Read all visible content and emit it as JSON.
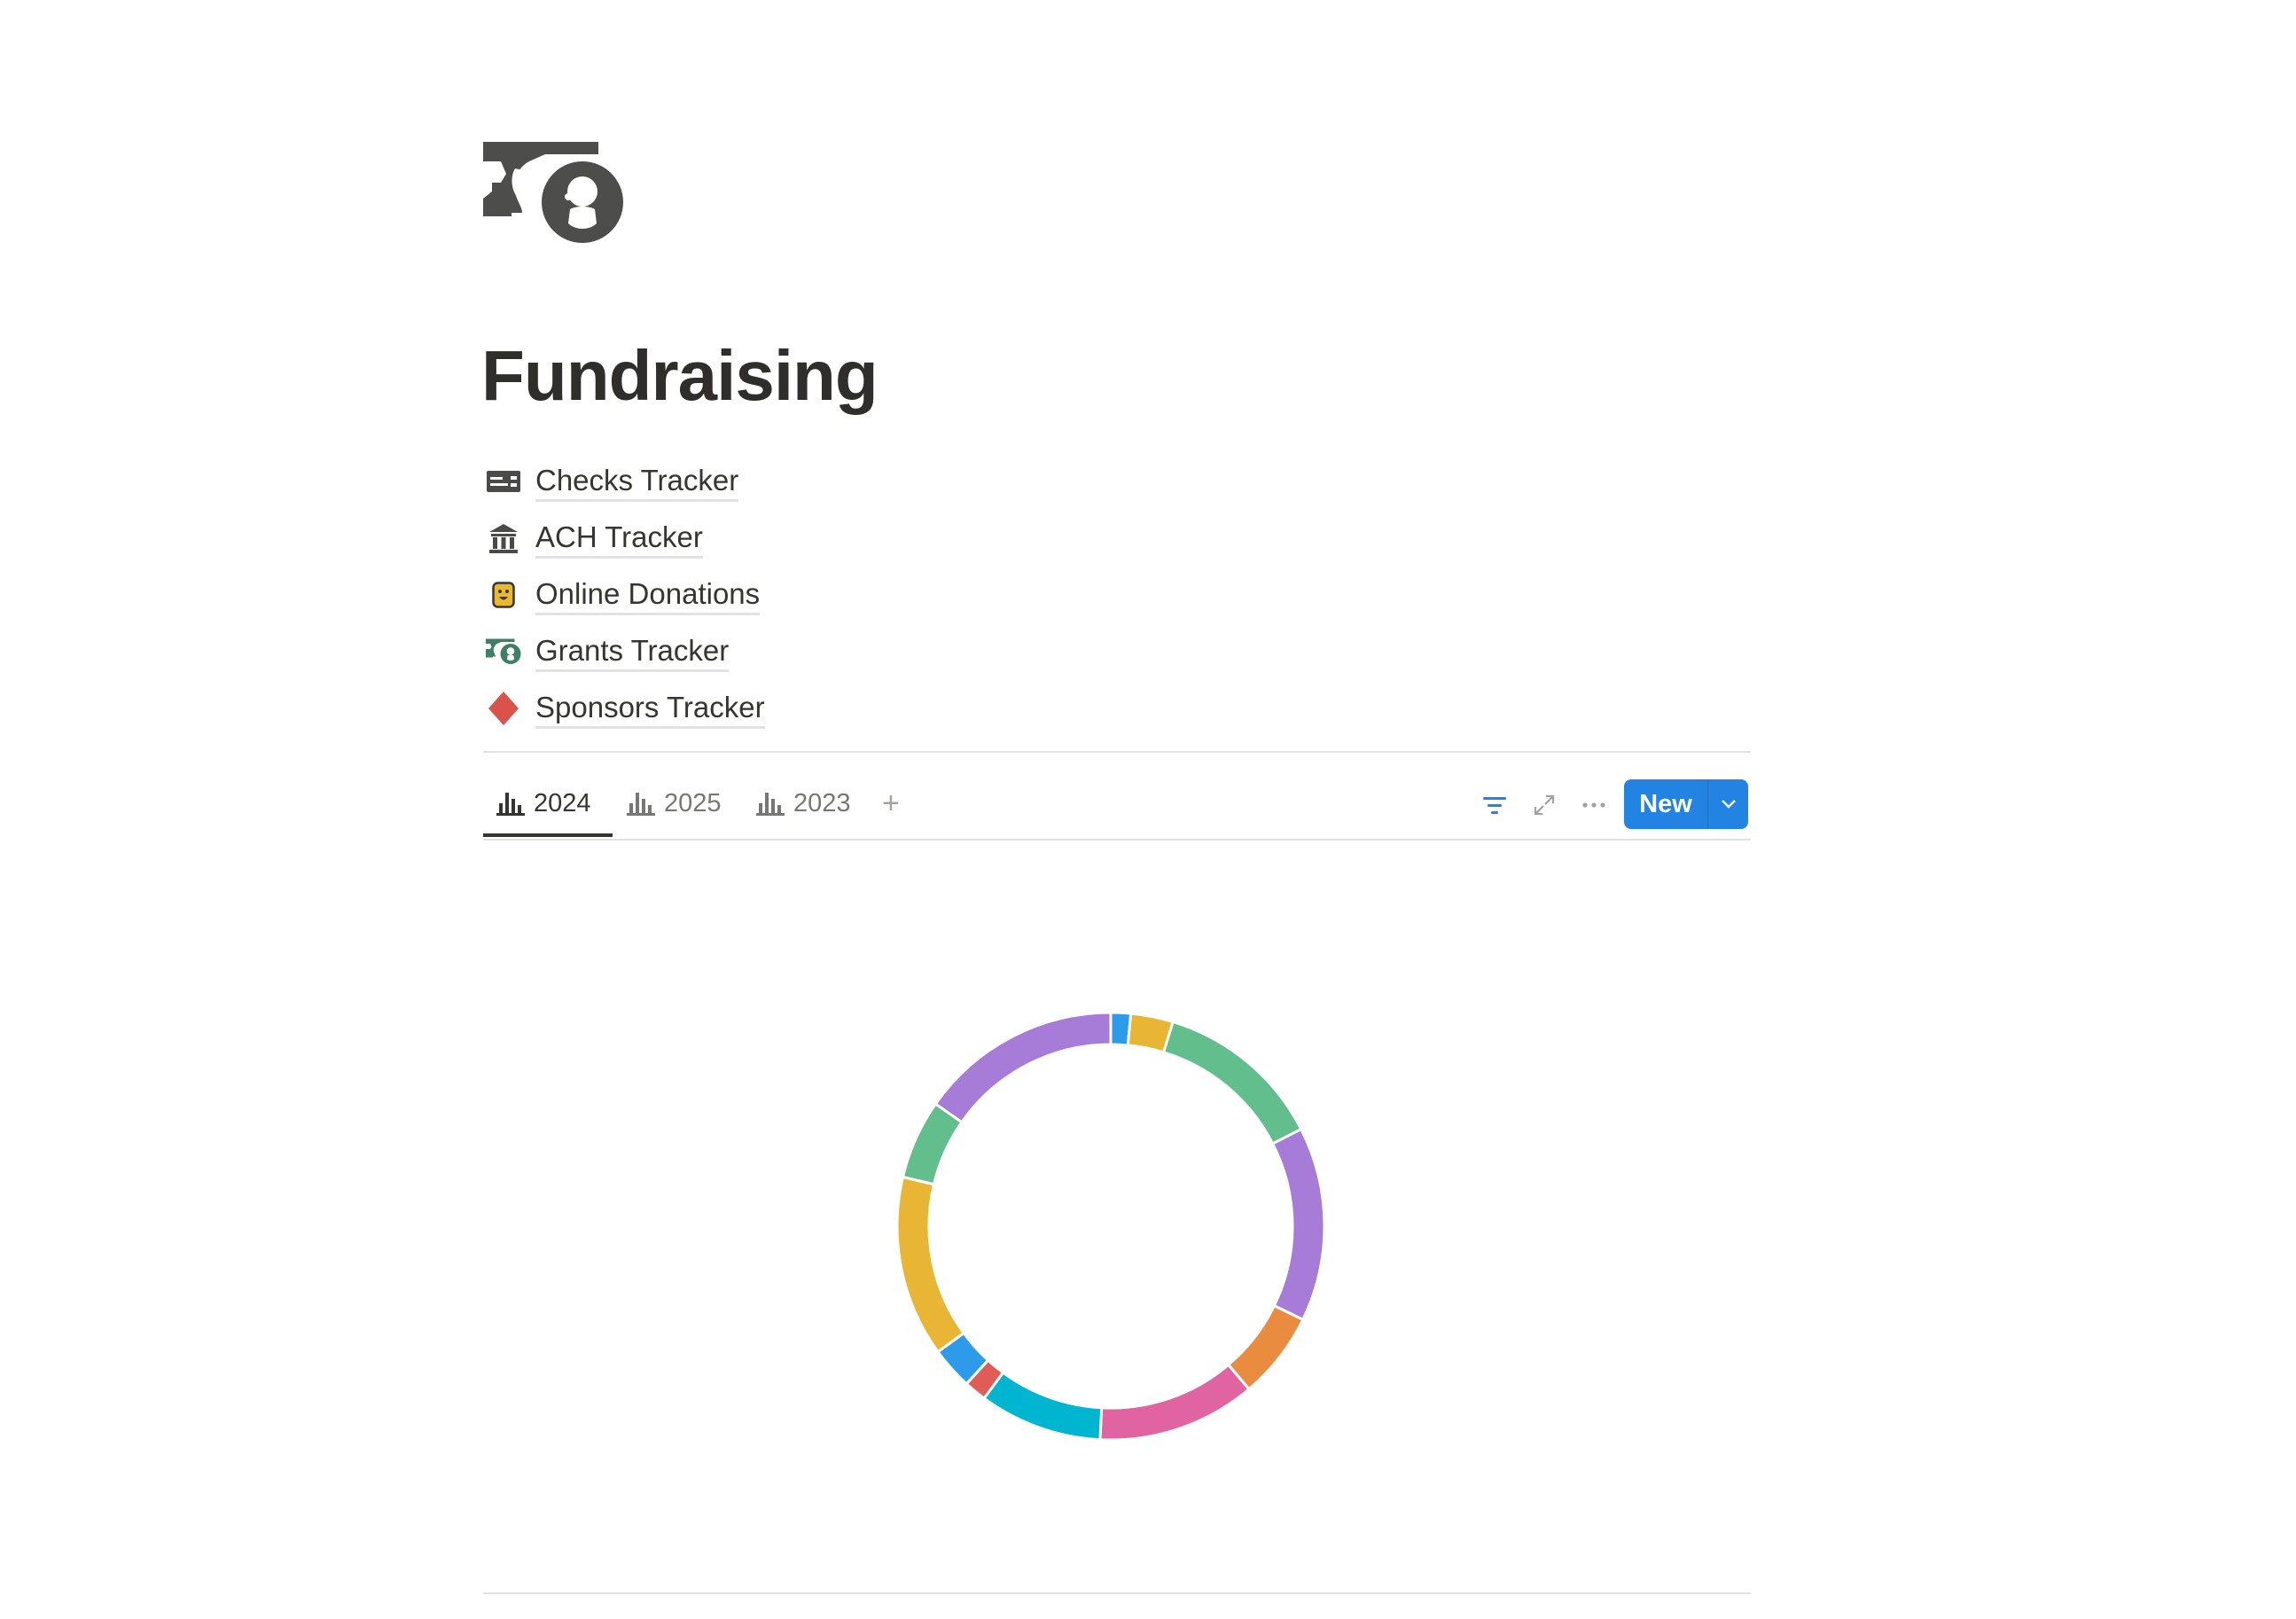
{
  "page": {
    "icon": "money-with-portrait-icon",
    "title": "Fundraising",
    "links": [
      {
        "label": "Checks Tracker",
        "icon": "check-card-icon",
        "color": "#4a4a48"
      },
      {
        "label": "ACH Tracker",
        "icon": "bank-icon",
        "color": "#4a4a48"
      },
      {
        "label": "Online Donations",
        "icon": "smiley-card-icon",
        "color": "#e9b730"
      },
      {
        "label": "Grants Tracker",
        "icon": "money-with-portrait-icon",
        "color": "#3f7f63"
      },
      {
        "label": "Sponsors Tracker",
        "icon": "diamond-icon",
        "color": "#d9534a"
      }
    ]
  },
  "view": {
    "tabs": [
      {
        "label": "2024",
        "icon": "bar-chart-icon",
        "active": true
      },
      {
        "label": "2025",
        "icon": "bar-chart-icon",
        "active": false
      },
      {
        "label": "2023",
        "icon": "bar-chart-icon",
        "active": false
      }
    ],
    "add_tab": "+",
    "toolbar": {
      "filter_icon": "filter-icon",
      "expand_icon": "expand-icon",
      "more_icon": "more-icon",
      "new_label": "New",
      "accent": "#2383e2"
    }
  },
  "chart_data": {
    "type": "pie",
    "style": "donut",
    "legend": "none",
    "unit": "percent",
    "values": [
      1.5,
      3.2,
      12.8,
      14.7,
      6.6,
      12.0,
      9.3,
      1.7,
      3.2,
      13.7,
      6.0,
      15.3
    ],
    "colors": [
      "#2e9bea",
      "#e8b634",
      "#62bf8d",
      "#a77bd8",
      "#ea8c40",
      "#e064a2",
      "#00b5cf",
      "#e05c56",
      "#2e9bea",
      "#e8b634",
      "#62bf8d",
      "#a77bd8"
    ]
  }
}
